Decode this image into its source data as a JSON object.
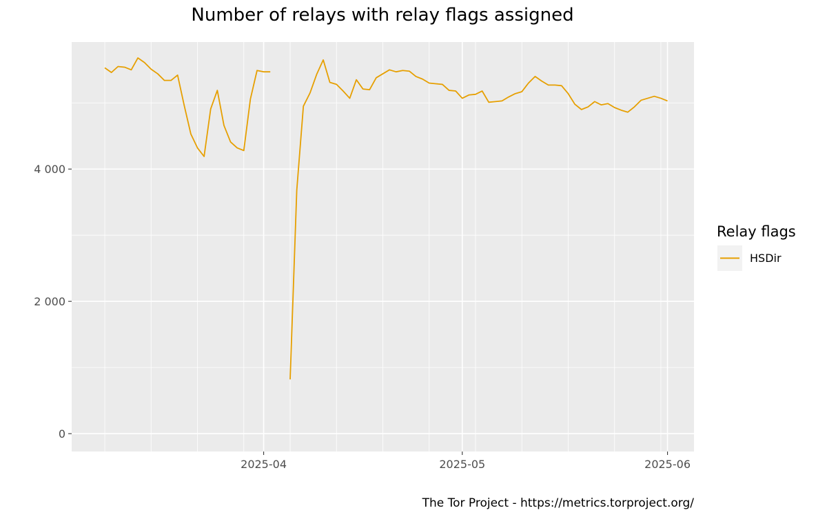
{
  "chart_data": {
    "type": "line",
    "title": "Number of relays with relay flags assigned",
    "xlabel": "",
    "ylabel": "",
    "caption": "The Tor Project - https://metrics.torproject.org/",
    "legend_title": "Relay flags",
    "legend_position": "right",
    "grid": true,
    "xlim": [
      "2025-03-03",
      "2025-06-05"
    ],
    "ylim": [
      -270,
      5920
    ],
    "x_ticks": [
      "2025-04-01",
      "2025-05-01",
      "2025-06-01"
    ],
    "x_tick_labels": [
      "2025-04",
      "2025-05",
      "2025-06"
    ],
    "y_ticks": [
      0,
      2000,
      4000
    ],
    "y_tick_labels": [
      "0",
      "2 000",
      "4 000"
    ],
    "series": [
      {
        "name": "HSDir",
        "color": "#E69F00",
        "segments": [
          {
            "x": [
              "2025-03-08",
              "2025-03-09",
              "2025-03-10",
              "2025-03-11",
              "2025-03-12",
              "2025-03-13",
              "2025-03-14",
              "2025-03-15",
              "2025-03-16",
              "2025-03-17",
              "2025-03-18",
              "2025-03-19",
              "2025-03-20",
              "2025-03-21",
              "2025-03-22",
              "2025-03-23",
              "2025-03-24",
              "2025-03-25",
              "2025-03-26",
              "2025-03-27",
              "2025-03-28",
              "2025-03-29",
              "2025-03-30",
              "2025-03-31",
              "2025-04-01",
              "2025-04-02"
            ],
            "y": [
              5530,
              5460,
              5550,
              5540,
              5500,
              5680,
              5610,
              5510,
              5440,
              5340,
              5340,
              5420,
              4960,
              4530,
              4320,
              4190,
              4910,
              5190,
              4660,
              4410,
              4320,
              4280,
              5060,
              5490,
              5470,
              5470
            ]
          },
          {
            "x": [
              "2025-04-05",
              "2025-04-06",
              "2025-04-07",
              "2025-04-08",
              "2025-04-09",
              "2025-04-10",
              "2025-04-11",
              "2025-04-12",
              "2025-04-13",
              "2025-04-14",
              "2025-04-15",
              "2025-04-16",
              "2025-04-17",
              "2025-04-18",
              "2025-04-19",
              "2025-04-20",
              "2025-04-21",
              "2025-04-22",
              "2025-04-23",
              "2025-04-24",
              "2025-04-25",
              "2025-04-26",
              "2025-04-27",
              "2025-04-28",
              "2025-04-29",
              "2025-04-30",
              "2025-05-01",
              "2025-05-02",
              "2025-05-03",
              "2025-05-04",
              "2025-05-05",
              "2025-05-06",
              "2025-05-07",
              "2025-05-08",
              "2025-05-09",
              "2025-05-10",
              "2025-05-11",
              "2025-05-12",
              "2025-05-13",
              "2025-05-14",
              "2025-05-15",
              "2025-05-16",
              "2025-05-17",
              "2025-05-18",
              "2025-05-19",
              "2025-05-20",
              "2025-05-21",
              "2025-05-22",
              "2025-05-23",
              "2025-05-24",
              "2025-05-25",
              "2025-05-26",
              "2025-05-27",
              "2025-05-28",
              "2025-05-29",
              "2025-05-30",
              "2025-05-31",
              "2025-06-01"
            ],
            "y": [
              820,
              3680,
              4950,
              5150,
              5430,
              5650,
              5310,
              5280,
              5180,
              5070,
              5350,
              5210,
              5200,
              5380,
              5440,
              5500,
              5470,
              5490,
              5480,
              5400,
              5360,
              5300,
              5290,
              5280,
              5190,
              5180,
              5070,
              5120,
              5130,
              5180,
              5010,
              5020,
              5030,
              5090,
              5140,
              5170,
              5300,
              5400,
              5330,
              5270,
              5270,
              5260,
              5140,
              4980,
              4900,
              4940,
              5020,
              4970,
              4990,
              4930,
              4890,
              4860,
              4940,
              5040,
              5070,
              5100,
              5070,
              5030
            ]
          }
        ]
      }
    ]
  }
}
